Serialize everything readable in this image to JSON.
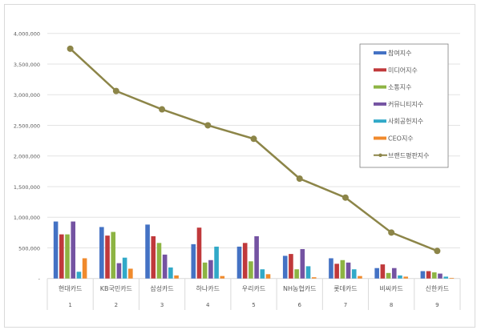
{
  "chart_data": {
    "type": "bar",
    "title": "",
    "xlabel": "",
    "ylabel": "",
    "ylim": [
      0,
      4000000
    ],
    "yticks": [
      "-",
      "500,000",
      "1,000,000",
      "1,500,000",
      "2,000,000",
      "2,500,000",
      "3,000,000",
      "3,500,000",
      "4,000,000"
    ],
    "grid": true,
    "legend_position": "top-right",
    "categories": [
      "현대카드",
      "KB국민카드",
      "삼성카드",
      "하나카드",
      "우리카드",
      "NH농협카드",
      "롯데카드",
      "비씨카드",
      "신한카드"
    ],
    "ranks": [
      "1",
      "2",
      "3",
      "4",
      "5",
      "6",
      "7",
      "8",
      "9"
    ],
    "series": [
      {
        "name": "참여지수",
        "type": "bar",
        "color": "#4472c4",
        "values": [
          930000,
          840000,
          880000,
          560000,
          520000,
          370000,
          330000,
          170000,
          120000
        ]
      },
      {
        "name": "미디어지수",
        "type": "bar",
        "color": "#c0393b",
        "values": [
          720000,
          700000,
          690000,
          830000,
          580000,
          400000,
          240000,
          230000,
          120000
        ]
      },
      {
        "name": "소통지수",
        "type": "bar",
        "color": "#8db443",
        "values": [
          720000,
          760000,
          580000,
          260000,
          280000,
          150000,
          300000,
          90000,
          100000
        ]
      },
      {
        "name": "커뮤니티지수",
        "type": "bar",
        "color": "#7453a2",
        "values": [
          930000,
          250000,
          390000,
          300000,
          690000,
          480000,
          260000,
          170000,
          80000
        ]
      },
      {
        "name": "사회공헌지수",
        "type": "bar",
        "color": "#31a9c8",
        "values": [
          110000,
          340000,
          180000,
          520000,
          150000,
          200000,
          150000,
          50000,
          30000
        ]
      },
      {
        "name": "CEO지수",
        "type": "bar",
        "color": "#f08a2c",
        "values": [
          330000,
          160000,
          50000,
          40000,
          70000,
          20000,
          40000,
          30000,
          10000
        ]
      },
      {
        "name": "브랜드평판지수",
        "type": "line",
        "color": "#8c8548",
        "values": [
          3750000,
          3060000,
          2760000,
          2500000,
          2280000,
          1630000,
          1320000,
          750000,
          450000
        ]
      }
    ]
  }
}
